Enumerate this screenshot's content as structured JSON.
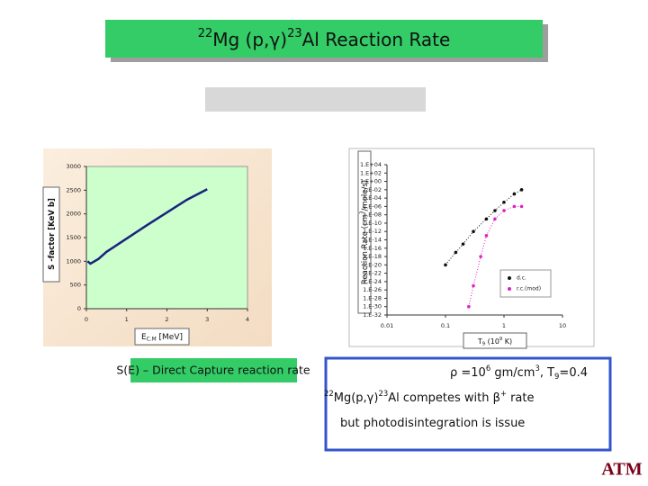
{
  "title": [
    {
      "t": "22",
      "s": "sup"
    },
    {
      "t": "Mg (p,γ)"
    },
    {
      "t": "23",
      "s": "sup"
    },
    {
      "t": "Al Reaction Rate"
    }
  ],
  "chart_data": [
    {
      "type": "line",
      "color": "#1a237e",
      "y_label": [
        {
          "t": "S -factor [KeV b]"
        }
      ],
      "x_label": [
        {
          "t": "E"
        },
        {
          "t": "C.M",
          "s": "sub"
        },
        {
          "t": " [MeV]"
        }
      ],
      "x": [
        0.03,
        0.1,
        0.3,
        0.5,
        1,
        1.5,
        2,
        2.5,
        3
      ],
      "values": [
        1000,
        950,
        1050,
        1200,
        1480,
        1760,
        2030,
        2300,
        2520
      ],
      "xlim": [
        0,
        4
      ],
      "xticks": [
        0,
        1,
        2,
        3,
        4
      ],
      "ylim": [
        0,
        3000
      ],
      "yticks": [
        0,
        500,
        1000,
        1500,
        2000,
        2500,
        3000
      ]
    },
    {
      "type": "scatter",
      "log_x": true,
      "log_y": true,
      "y_label": [
        {
          "t": "Reaction Rate (cm"
        },
        {
          "t": "3",
          "s": "sup"
        },
        {
          "t": "/mole/s)"
        }
      ],
      "x_label": [
        {
          "t": "T"
        },
        {
          "t": "9",
          "s": "sub"
        },
        {
          "t": " (10"
        },
        {
          "t": "9",
          "s": "sup"
        },
        {
          "t": " K)"
        }
      ],
      "xlim": [
        0.01,
        10
      ],
      "xticks": [
        0.01,
        0.1,
        1,
        10
      ],
      "ylim": [
        1e-32,
        10000.0
      ],
      "yticks": [
        {
          "value": 10000.0,
          "label": "1.E+04"
        },
        {
          "value": 100.0,
          "label": "1.E+02"
        },
        {
          "value": 1,
          "label": "1.E+00"
        },
        {
          "value": 0.01,
          "label": "1.E-02"
        },
        {
          "value": 0.0001,
          "label": "1.E-04"
        },
        {
          "value": 1e-06,
          "label": "1.E-06"
        },
        {
          "value": 1e-08,
          "label": "1.E-08"
        },
        {
          "value": 1e-10,
          "label": "1.E-10"
        },
        {
          "value": 1e-12,
          "label": "1.E-12"
        },
        {
          "value": 1e-14,
          "label": "1.E-14"
        },
        {
          "value": 1e-16,
          "label": "1.E-16"
        },
        {
          "value": 1e-18,
          "label": "1.E-18"
        },
        {
          "value": 1e-20,
          "label": "1.E-20"
        },
        {
          "value": 1e-22,
          "label": "1.E-22"
        },
        {
          "value": 1e-24,
          "label": "1.E-24"
        },
        {
          "value": 1e-26,
          "label": "1.E-26"
        },
        {
          "value": 1e-28,
          "label": "1.E-28"
        },
        {
          "value": 1e-30,
          "label": "1.E-30"
        },
        {
          "value": 1e-32,
          "label": "1.E-32"
        }
      ],
      "series": [
        {
          "name": "d.c.",
          "color": "#111111",
          "x": [
            0.1,
            0.15,
            0.2,
            0.3,
            0.5,
            0.7,
            1,
            1.5,
            2
          ],
          "values": [
            1e-20,
            1e-17,
            1e-15,
            1e-12,
            1e-09,
            1e-07,
            1e-05,
            0.001,
            0.01
          ]
        },
        {
          "name": "r.c.(mod)",
          "color": "#e020c0",
          "x": [
            0.25,
            0.3,
            0.4,
            0.5,
            0.7,
            1,
            1.5,
            2
          ],
          "values": [
            1e-30,
            1e-25,
            1e-18,
            1e-13,
            1e-09,
            1e-07,
            1e-06,
            1e-06
          ]
        }
      ]
    }
  ],
  "caption": "S(E) – Direct Capture reaction rate",
  "notes": [
    [
      {
        "t": "ρ =10"
      },
      {
        "t": "6",
        "s": "sup"
      },
      {
        "t": " gm/cm"
      },
      {
        "t": "3",
        "s": "sup"
      },
      {
        "t": ", T"
      },
      {
        "t": "9",
        "s": "sub"
      },
      {
        "t": "=0.4"
      }
    ],
    [
      {
        "t": "22",
        "s": "sup"
      },
      {
        "t": "Mg(p,γ)"
      },
      {
        "t": "23",
        "s": "sup"
      },
      {
        "t": "Al competes with β"
      },
      {
        "t": "+",
        "s": "sup"
      },
      {
        "t": " rate"
      }
    ],
    [
      {
        "t": "but photodisintegration  is issue"
      }
    ]
  ],
  "logo": "ATM"
}
